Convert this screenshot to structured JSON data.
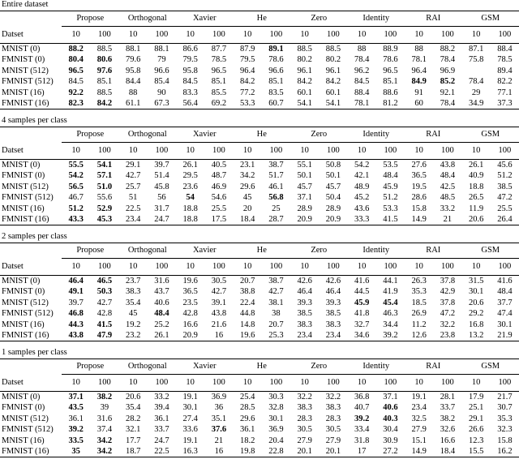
{
  "tables": [
    {
      "title": "Entire dataset",
      "row_header": "Datset",
      "columns": [
        "Propose",
        "Orthogonal",
        "Xavier",
        "He",
        "Zero",
        "Identity",
        "RAI",
        "GSM"
      ],
      "subcolumns": [
        "10",
        "100"
      ],
      "rows": [
        {
          "label": "MNIST (0)",
          "values": [
            "88.2",
            "88.5",
            "88.1",
            "88.1",
            "86.6",
            "87.7",
            "87.9",
            "89.1",
            "88.5",
            "88.5",
            "88",
            "88.9",
            "88",
            "88.2",
            "87.1",
            "88.4"
          ],
          "bold": [
            0,
            7
          ]
        },
        {
          "label": "FMNIST (0)",
          "values": [
            "80.4",
            "80.6",
            "79.6",
            "79",
            "79.5",
            "78.5",
            "79.5",
            "78.6",
            "80.2",
            "80.2",
            "78.4",
            "78.6",
            "78.1",
            "78.4",
            "75.8",
            "78.5"
          ],
          "bold": [
            0,
            1
          ]
        },
        {
          "label": "MNIST (512)",
          "values": [
            "96.5",
            "97.6",
            "95.8",
            "96.6",
            "95.8",
            "96.5",
            "96.4",
            "96.6",
            "96.1",
            "96.1",
            "96.2",
            "96.5",
            "96.4",
            "96.9",
            null,
            "89.4"
          ],
          "bold": [
            0,
            1
          ]
        },
        {
          "label": "FMNIST (512)",
          "values": [
            "84.5",
            "85.1",
            "84.4",
            "85.4",
            "84.5",
            "85.1",
            "84.2",
            "85.1",
            "84.2",
            "84.2",
            "84.5",
            "85.1",
            "84.9",
            "85.2",
            "78.4",
            "82.2"
          ],
          "bold": [
            12,
            13
          ]
        },
        {
          "label": "MNIST (16)",
          "values": [
            "92.2",
            "88.5",
            "88",
            "90",
            "83.3",
            "85.5",
            "77.2",
            "83.5",
            "60.1",
            "60.1",
            "88.4",
            "88.6",
            "91",
            "92.1",
            "29",
            "77.1"
          ],
          "bold": [
            0
          ]
        },
        {
          "label": "FMNIST (16)",
          "values": [
            "82.3",
            "84.2",
            "61.1",
            "67.3",
            "56.4",
            "69.2",
            "53.3",
            "60.7",
            "54.1",
            "54.1",
            "78.1",
            "81.2",
            "60",
            "78.4",
            "34.9",
            "37.3"
          ],
          "bold": [
            0,
            1
          ]
        }
      ]
    },
    {
      "title": "4 samples per class",
      "row_header": "Datset",
      "columns": [
        "Propose",
        "Orthogonal",
        "Xavier",
        "He",
        "Zero",
        "Identity",
        "RAI",
        "GSM"
      ],
      "subcolumns": [
        "10",
        "100"
      ],
      "rows": [
        {
          "label": "MNIST (0)",
          "values": [
            "55.5",
            "54.1",
            "29.1",
            "39.7",
            "26.1",
            "40.5",
            "23.1",
            "38.7",
            "55.1",
            "50.8",
            "54.2",
            "53.5",
            "27.6",
            "43.8",
            "26.1",
            "45.6"
          ],
          "bold": [
            0,
            1
          ]
        },
        {
          "label": "FMNIST (0)",
          "values": [
            "54.2",
            "57.1",
            "42.7",
            "51.4",
            "29.5",
            "48.7",
            "34.2",
            "51.7",
            "50.1",
            "50.1",
            "42.1",
            "48.4",
            "36.5",
            "48.4",
            "40.9",
            "51.2"
          ],
          "bold": [
            0,
            1
          ]
        },
        {
          "label": "MNIST (512)",
          "values": [
            "56.5",
            "51.0",
            "25.7",
            "45.8",
            "23.6",
            "46.9",
            "29.6",
            "46.1",
            "45.7",
            "45.7",
            "48.9",
            "45.9",
            "19.5",
            "42.5",
            "18.8",
            "38.5"
          ],
          "bold": [
            0,
            1
          ]
        },
        {
          "label": "FMNIST (512)",
          "values": [
            "46.7",
            "55.6",
            "51",
            "56",
            "54",
            "54.6",
            "45",
            "56.8",
            "37.1",
            "50.4",
            "45.2",
            "51.2",
            "28.6",
            "48.5",
            "26.5",
            "47.2"
          ],
          "bold": [
            4,
            7
          ]
        },
        {
          "label": "MNIST (16)",
          "values": [
            "51.2",
            "52.9",
            "22.5",
            "31.7",
            "18.8",
            "25.5",
            "20",
            "25",
            "28.9",
            "28.9",
            "43.6",
            "53.3",
            "15.8",
            "33.2",
            "11.9",
            "25.5"
          ],
          "bold": [
            0,
            1
          ]
        },
        {
          "label": "FMNIST (16)",
          "values": [
            "43.3",
            "45.3",
            "23.4",
            "24.7",
            "18.8",
            "17.5",
            "18.4",
            "28.7",
            "20.9",
            "20.9",
            "33.3",
            "41.5",
            "14.9",
            "21",
            "20.6",
            "26.4"
          ],
          "bold": [
            0,
            1
          ]
        }
      ]
    },
    {
      "title": "2 samples per class",
      "row_header": "Datset",
      "columns": [
        "Propose",
        "Orthogonal",
        "Xavier",
        "He",
        "Zero",
        "Identity",
        "RAI",
        "GSM"
      ],
      "subcolumns": [
        "10",
        "100"
      ],
      "rows": [
        {
          "label": "MNIST (0)",
          "values": [
            "46.4",
            "46.5",
            "23.7",
            "31.6",
            "19.6",
            "30.5",
            "20.7",
            "38.7",
            "42.6",
            "42.6",
            "41.6",
            "44.1",
            "26.3",
            "37.8",
            "31.5",
            "41.6"
          ],
          "bold": [
            0,
            1
          ]
        },
        {
          "label": "FMNIST (0)",
          "values": [
            "49.1",
            "50.3",
            "38.3",
            "43.7",
            "36.5",
            "42.7",
            "38.8",
            "42.7",
            "46.4",
            "46.4",
            "44.5",
            "41.9",
            "35.3",
            "42.9",
            "30.1",
            "48.4"
          ],
          "bold": [
            0,
            1
          ]
        },
        {
          "label": "MNIST (512)",
          "values": [
            "39.7",
            "42.7",
            "35.4",
            "40.6",
            "23.5",
            "39.1",
            "22.4",
            "38.1",
            "39.3",
            "39.3",
            "45.9",
            "45.4",
            "18.5",
            "37.8",
            "20.6",
            "37.7"
          ],
          "bold": [
            10,
            11
          ]
        },
        {
          "label": "FMNIST (512)",
          "values": [
            "46.8",
            "42.8",
            "45",
            "48.4",
            "42.8",
            "43.8",
            "44.8",
            "38",
            "38.5",
            "38.5",
            "41.8",
            "46.3",
            "26.9",
            "47.2",
            "29.2",
            "47.4"
          ],
          "bold": [
            0,
            3
          ]
        },
        {
          "label": "MNIST (16)",
          "values": [
            "44.3",
            "41.5",
            "19.2",
            "25.2",
            "16.6",
            "21.6",
            "14.8",
            "20.7",
            "38.3",
            "38.3",
            "32.7",
            "34.4",
            "11.2",
            "32.2",
            "16.8",
            "30.1"
          ],
          "bold": [
            0,
            1
          ]
        },
        {
          "label": "FMNIST (16)",
          "values": [
            "43.8",
            "47.9",
            "23.2",
            "26.1",
            "20.9",
            "16",
            "19.6",
            "25.3",
            "23.4",
            "23.4",
            "34.6",
            "39.2",
            "12.6",
            "23.8",
            "13.2",
            "21.9"
          ],
          "bold": [
            0,
            1
          ]
        }
      ]
    },
    {
      "title": "1 samples per class",
      "row_header": "Datset",
      "columns": [
        "Propose",
        "Orthogonal",
        "Xavier",
        "He",
        "Zero",
        "Identity",
        "RAI",
        "GSM"
      ],
      "subcolumns": [
        "10",
        "100"
      ],
      "rows": [
        {
          "label": "MNIST (0)",
          "values": [
            "37.1",
            "38.2",
            "20.6",
            "33.2",
            "19.1",
            "36.9",
            "25.4",
            "30.3",
            "32.2",
            "32.2",
            "36.8",
            "37.1",
            "19.1",
            "28.1",
            "17.9",
            "21.7"
          ],
          "bold": [
            0,
            1
          ]
        },
        {
          "label": "FMNIST (0)",
          "values": [
            "43.5",
            "39",
            "35.4",
            "39.4",
            "30.1",
            "36",
            "28.5",
            "32.8",
            "38.3",
            "38.3",
            "40.7",
            "40.6",
            "23.4",
            "33.7",
            "25.1",
            "30.7"
          ],
          "bold": [
            0,
            11
          ]
        },
        {
          "label": "MNIST (512)",
          "values": [
            "36.1",
            "31.6",
            "28.2",
            "36.1",
            "27.4",
            "35.1",
            "29.6",
            "30.1",
            "28.3",
            "28.3",
            "39.2",
            "40.3",
            "32.5",
            "38.2",
            "29.1",
            "35.3"
          ],
          "bold": [
            10,
            11
          ]
        },
        {
          "label": "FMNIST (512)",
          "values": [
            "39.2",
            "37.4",
            "32.1",
            "33.7",
            "33.6",
            "37.6",
            "36.1",
            "36.9",
            "30.5",
            "30.5",
            "33.4",
            "30.4",
            "27.9",
            "32.6",
            "26.6",
            "32.3"
          ],
          "bold": [
            0,
            5
          ]
        },
        {
          "label": "MNIST (16)",
          "values": [
            "33.5",
            "34.2",
            "17.7",
            "24.7",
            "19.1",
            "21",
            "18.2",
            "20.4",
            "27.9",
            "27.9",
            "31.8",
            "30.9",
            "15.1",
            "16.6",
            "12.3",
            "15.8"
          ],
          "bold": [
            0,
            1
          ]
        },
        {
          "label": "FMNIST (16)",
          "values": [
            "35",
            "34.2",
            "18.7",
            "22.5",
            "16.3",
            "16",
            "19.8",
            "22.8",
            "20.1",
            "20.1",
            "17",
            "27.2",
            "14.9",
            "18.4",
            "15.5",
            "16.2"
          ],
          "bold": [
            0,
            1
          ]
        }
      ]
    }
  ]
}
